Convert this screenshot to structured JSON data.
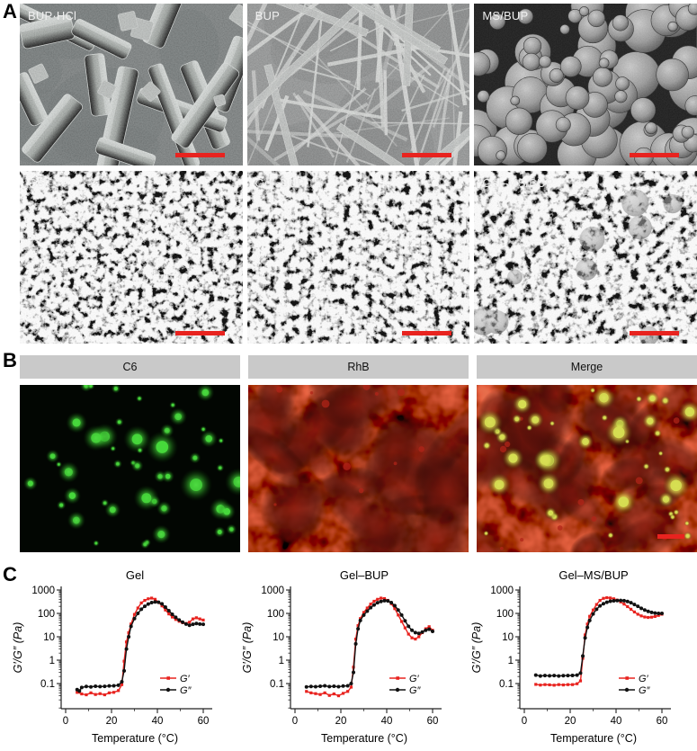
{
  "colors": {
    "accent_red": "#e8231f",
    "curve_black": "#111111",
    "header_gray": "#c9c9c9",
    "green_dot": "#46d83b",
    "red_blob": "#7d150c",
    "merge_dot": "#d6de52"
  },
  "panels": {
    "a": {
      "label": "A",
      "tiles": [
        {
          "label": "BUP·HCl"
        },
        {
          "label": "BUP"
        },
        {
          "label": "MS/BUP"
        },
        {
          "label": "Gel"
        },
        {
          "label": "Gel–BUP"
        },
        {
          "label": "Gel–MS/BUP"
        }
      ]
    },
    "b": {
      "label": "B",
      "headers": [
        {
          "label": "C6"
        },
        {
          "label": "RhB"
        },
        {
          "label": "Merge"
        }
      ]
    },
    "c": {
      "label": "C"
    }
  },
  "chart_data": [
    {
      "type": "line",
      "title": "Gel",
      "xlabel": "Temperature (°C)",
      "ylabel": "G′/G″ (Pa)",
      "x_ticks": [
        0,
        20,
        40,
        60
      ],
      "x_minor_ticks": [
        10,
        30,
        50
      ],
      "y_ticks": [
        1000,
        100,
        10,
        1,
        0.1
      ],
      "xlim": [
        0,
        64
      ],
      "ylim": [
        0.0085,
        1000
      ],
      "ylog": true,
      "grid": false,
      "legend_position": "lower right",
      "legend": [
        {
          "name": "G′",
          "color": "#e8231f"
        },
        {
          "name": "G″",
          "color": "#111111"
        }
      ],
      "series": [
        {
          "name": "G′",
          "color": "#e8231f",
          "marker": "square",
          "points": [
            [
              5,
              0.042
            ],
            [
              7,
              0.036
            ],
            [
              9,
              0.033
            ],
            [
              11,
              0.04
            ],
            [
              13,
              0.034
            ],
            [
              15,
              0.037
            ],
            [
              17,
              0.033
            ],
            [
              19,
              0.04
            ],
            [
              21,
              0.042
            ],
            [
              23,
              0.05
            ],
            [
              24.5,
              0.09
            ],
            [
              25.5,
              0.9
            ],
            [
              26.5,
              6
            ],
            [
              27.5,
              15
            ],
            [
              28.5,
              35
            ],
            [
              30,
              90
            ],
            [
              31.5,
              170
            ],
            [
              33,
              280
            ],
            [
              34.5,
              360
            ],
            [
              36,
              420
            ],
            [
              37.5,
              450
            ],
            [
              39,
              400
            ],
            [
              40.5,
              300
            ],
            [
              42,
              210
            ],
            [
              43.5,
              140
            ],
            [
              45,
              95
            ],
            [
              46.5,
              70
            ],
            [
              48,
              55
            ],
            [
              49.5,
              46
            ],
            [
              51,
              40
            ],
            [
              52.5,
              37
            ],
            [
              54,
              42
            ],
            [
              55.5,
              58
            ],
            [
              57,
              65
            ],
            [
              58.5,
              58
            ],
            [
              60,
              52
            ]
          ]
        },
        {
          "name": "G″",
          "color": "#111111",
          "marker": "circle",
          "points": [
            [
              5,
              0.055
            ],
            [
              6,
              0.048
            ],
            [
              7,
              0.068
            ],
            [
              9,
              0.075
            ],
            [
              11,
              0.072
            ],
            [
              13,
              0.077
            ],
            [
              15,
              0.074
            ],
            [
              17,
              0.076
            ],
            [
              19,
              0.079
            ],
            [
              21,
              0.08
            ],
            [
              23,
              0.085
            ],
            [
              24.5,
              0.12
            ],
            [
              25.5,
              0.35
            ],
            [
              26.5,
              3
            ],
            [
              27.5,
              10
            ],
            [
              28.5,
              28
            ],
            [
              30,
              60
            ],
            [
              31.5,
              100
            ],
            [
              33,
              150
            ],
            [
              34.5,
              200
            ],
            [
              36,
              250
            ],
            [
              37.5,
              290
            ],
            [
              39,
              310
            ],
            [
              40.5,
              300
            ],
            [
              42,
              255
            ],
            [
              43.5,
              185
            ],
            [
              45,
              130
            ],
            [
              46.5,
              92
            ],
            [
              48,
              68
            ],
            [
              49.5,
              52
            ],
            [
              51,
              42
            ],
            [
              52.5,
              35
            ],
            [
              54,
              31
            ],
            [
              55.5,
              34
            ],
            [
              57,
              37
            ],
            [
              58.5,
              35
            ],
            [
              60,
              34
            ]
          ]
        }
      ]
    },
    {
      "type": "line",
      "title": "Gel–BUP",
      "xlabel": "Temperature (°C)",
      "ylabel": "G′/G″ (Pa)",
      "x_ticks": [
        0,
        20,
        40,
        60
      ],
      "x_minor_ticks": [
        10,
        30,
        50
      ],
      "y_ticks": [
        1000,
        100,
        10,
        1,
        0.1
      ],
      "xlim": [
        0,
        64
      ],
      "ylim": [
        0.0085,
        1000
      ],
      "ylog": true,
      "grid": false,
      "legend_position": "lower right",
      "legend": [
        {
          "name": "G′",
          "color": "#e8231f"
        },
        {
          "name": "G″",
          "color": "#111111"
        }
      ],
      "series": [
        {
          "name": "G′",
          "color": "#e8231f",
          "marker": "square",
          "points": [
            [
              5,
              0.046
            ],
            [
              7,
              0.04
            ],
            [
              9,
              0.037
            ],
            [
              11,
              0.034
            ],
            [
              13,
              0.04
            ],
            [
              15,
              0.031
            ],
            [
              17,
              0.036
            ],
            [
              19,
              0.03
            ],
            [
              21,
              0.038
            ],
            [
              23,
              0.046
            ],
            [
              24.5,
              0.07
            ],
            [
              25.5,
              0.5
            ],
            [
              26.5,
              8
            ],
            [
              27.5,
              30
            ],
            [
              28.5,
              60
            ],
            [
              30,
              110
            ],
            [
              31.5,
              170
            ],
            [
              33,
              250
            ],
            [
              34.5,
              330
            ],
            [
              36,
              400
            ],
            [
              37.5,
              450
            ],
            [
              39,
              430
            ],
            [
              40.5,
              360
            ],
            [
              42,
              260
            ],
            [
              43.5,
              160
            ],
            [
              45,
              85
            ],
            [
              46.5,
              45
            ],
            [
              48,
              24
            ],
            [
              49.5,
              13
            ],
            [
              51,
              9
            ],
            [
              52.5,
              8
            ],
            [
              54,
              10
            ],
            [
              55.5,
              15
            ],
            [
              57,
              22
            ],
            [
              58.5,
              27
            ],
            [
              60,
              19
            ]
          ]
        },
        {
          "name": "G″",
          "color": "#111111",
          "marker": "circle",
          "points": [
            [
              5,
              0.072
            ],
            [
              7,
              0.075
            ],
            [
              9,
              0.073
            ],
            [
              11,
              0.077
            ],
            [
              13,
              0.08
            ],
            [
              15,
              0.074
            ],
            [
              17,
              0.077
            ],
            [
              19,
              0.073
            ],
            [
              21,
              0.078
            ],
            [
              23,
              0.08
            ],
            [
              24.5,
              0.1
            ],
            [
              25.5,
              0.3
            ],
            [
              26.5,
              5
            ],
            [
              27.5,
              22
            ],
            [
              28.5,
              50
            ],
            [
              30,
              85
            ],
            [
              31.5,
              125
            ],
            [
              33,
              175
            ],
            [
              34.5,
              230
            ],
            [
              36,
              285
            ],
            [
              37.5,
              325
            ],
            [
              39,
              350
            ],
            [
              40.5,
              340
            ],
            [
              42,
              290
            ],
            [
              43.5,
              215
            ],
            [
              45,
              140
            ],
            [
              46.5,
              85
            ],
            [
              48,
              48
            ],
            [
              49.5,
              28
            ],
            [
              51,
              19
            ],
            [
              52.5,
              15
            ],
            [
              54,
              14
            ],
            [
              55.5,
              16
            ],
            [
              57,
              19
            ],
            [
              58.5,
              21
            ],
            [
              60,
              17
            ]
          ]
        }
      ]
    },
    {
      "type": "line",
      "title": "Gel–MS/BUP",
      "xlabel": "Temperature (°C)",
      "ylabel": "G′/G″ (Pa)",
      "x_ticks": [
        0,
        20,
        40,
        60
      ],
      "x_minor_ticks": [
        10,
        30,
        50
      ],
      "y_ticks": [
        1000,
        100,
        10,
        1,
        0.1
      ],
      "xlim": [
        0,
        64
      ],
      "ylim": [
        0.0085,
        1000
      ],
      "ylog": true,
      "grid": false,
      "legend_position": "lower right",
      "legend": [
        {
          "name": "G′",
          "color": "#e8231f"
        },
        {
          "name": "G″",
          "color": "#111111"
        }
      ],
      "series": [
        {
          "name": "G′",
          "color": "#e8231f",
          "marker": "square",
          "points": [
            [
              5,
              0.092
            ],
            [
              7,
              0.086
            ],
            [
              9,
              0.09
            ],
            [
              11,
              0.088
            ],
            [
              13,
              0.085
            ],
            [
              15,
              0.09
            ],
            [
              17,
              0.087
            ],
            [
              19,
              0.09
            ],
            [
              21,
              0.09
            ],
            [
              23,
              0.098
            ],
            [
              24.5,
              0.13
            ],
            [
              25.5,
              1.2
            ],
            [
              26.5,
              12
            ],
            [
              27.5,
              35
            ],
            [
              28.5,
              75
            ],
            [
              30,
              140
            ],
            [
              31.5,
              240
            ],
            [
              33,
              360
            ],
            [
              34.5,
              440
            ],
            [
              36,
              470
            ],
            [
              37.5,
              455
            ],
            [
              39,
              420
            ],
            [
              40.5,
              370
            ],
            [
              42,
              310
            ],
            [
              43.5,
              250
            ],
            [
              45,
              195
            ],
            [
              46.5,
              150
            ],
            [
              48,
              115
            ],
            [
              49.5,
              92
            ],
            [
              51,
              78
            ],
            [
              52.5,
              70
            ],
            [
              54,
              67
            ],
            [
              55.5,
              69
            ],
            [
              57,
              74
            ],
            [
              58.5,
              82
            ],
            [
              60,
              92
            ]
          ]
        },
        {
          "name": "G″",
          "color": "#111111",
          "marker": "circle",
          "points": [
            [
              5,
              0.23
            ],
            [
              7,
              0.21
            ],
            [
              9,
              0.22
            ],
            [
              11,
              0.215
            ],
            [
              13,
              0.22
            ],
            [
              15,
              0.21
            ],
            [
              17,
              0.218
            ],
            [
              19,
              0.22
            ],
            [
              21,
              0.222
            ],
            [
              23,
              0.23
            ],
            [
              24.5,
              0.28
            ],
            [
              25.5,
              1.5
            ],
            [
              26.5,
              9
            ],
            [
              27.5,
              25
            ],
            [
              28.5,
              50
            ],
            [
              30,
              95
            ],
            [
              31.5,
              150
            ],
            [
              33,
              210
            ],
            [
              34.5,
              260
            ],
            [
              36,
              300
            ],
            [
              37.5,
              330
            ],
            [
              39,
              345
            ],
            [
              40.5,
              355
            ],
            [
              42,
              358
            ],
            [
              43.5,
              350
            ],
            [
              45,
              325
            ],
            [
              46.5,
              285
            ],
            [
              48,
              240
            ],
            [
              49.5,
              200
            ],
            [
              51,
              165
            ],
            [
              52.5,
              140
            ],
            [
              54,
              122
            ],
            [
              55.5,
              110
            ],
            [
              57,
              103
            ],
            [
              58.5,
              100
            ],
            [
              60,
              100
            ]
          ]
        }
      ]
    }
  ]
}
